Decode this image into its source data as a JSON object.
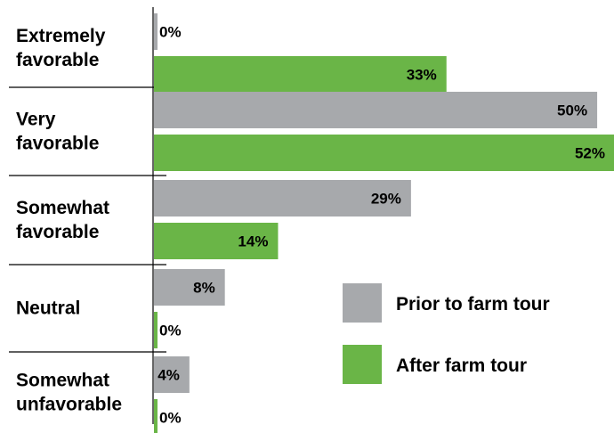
{
  "chart_data": {
    "type": "bar",
    "orientation": "horizontal",
    "title": "",
    "xlabel": "",
    "ylabel": "",
    "xlim": [
      0,
      52
    ],
    "grid": false,
    "legend_position": "right-bottom",
    "categories": [
      [
        "Extremely",
        "favorable"
      ],
      [
        "Very",
        "favorable"
      ],
      [
        "Somewhat",
        "favorable"
      ],
      [
        "Neutral"
      ],
      [
        "Somewhat",
        "unfavorable"
      ]
    ],
    "series": [
      {
        "name": "Prior to farm tour",
        "color": "#a7a9ac",
        "values": [
          0,
          50,
          29,
          8,
          4
        ]
      },
      {
        "name": "After farm tour",
        "color": "#6ab547",
        "values": [
          33,
          52,
          14,
          0,
          0
        ]
      }
    ],
    "value_suffix": "%"
  }
}
